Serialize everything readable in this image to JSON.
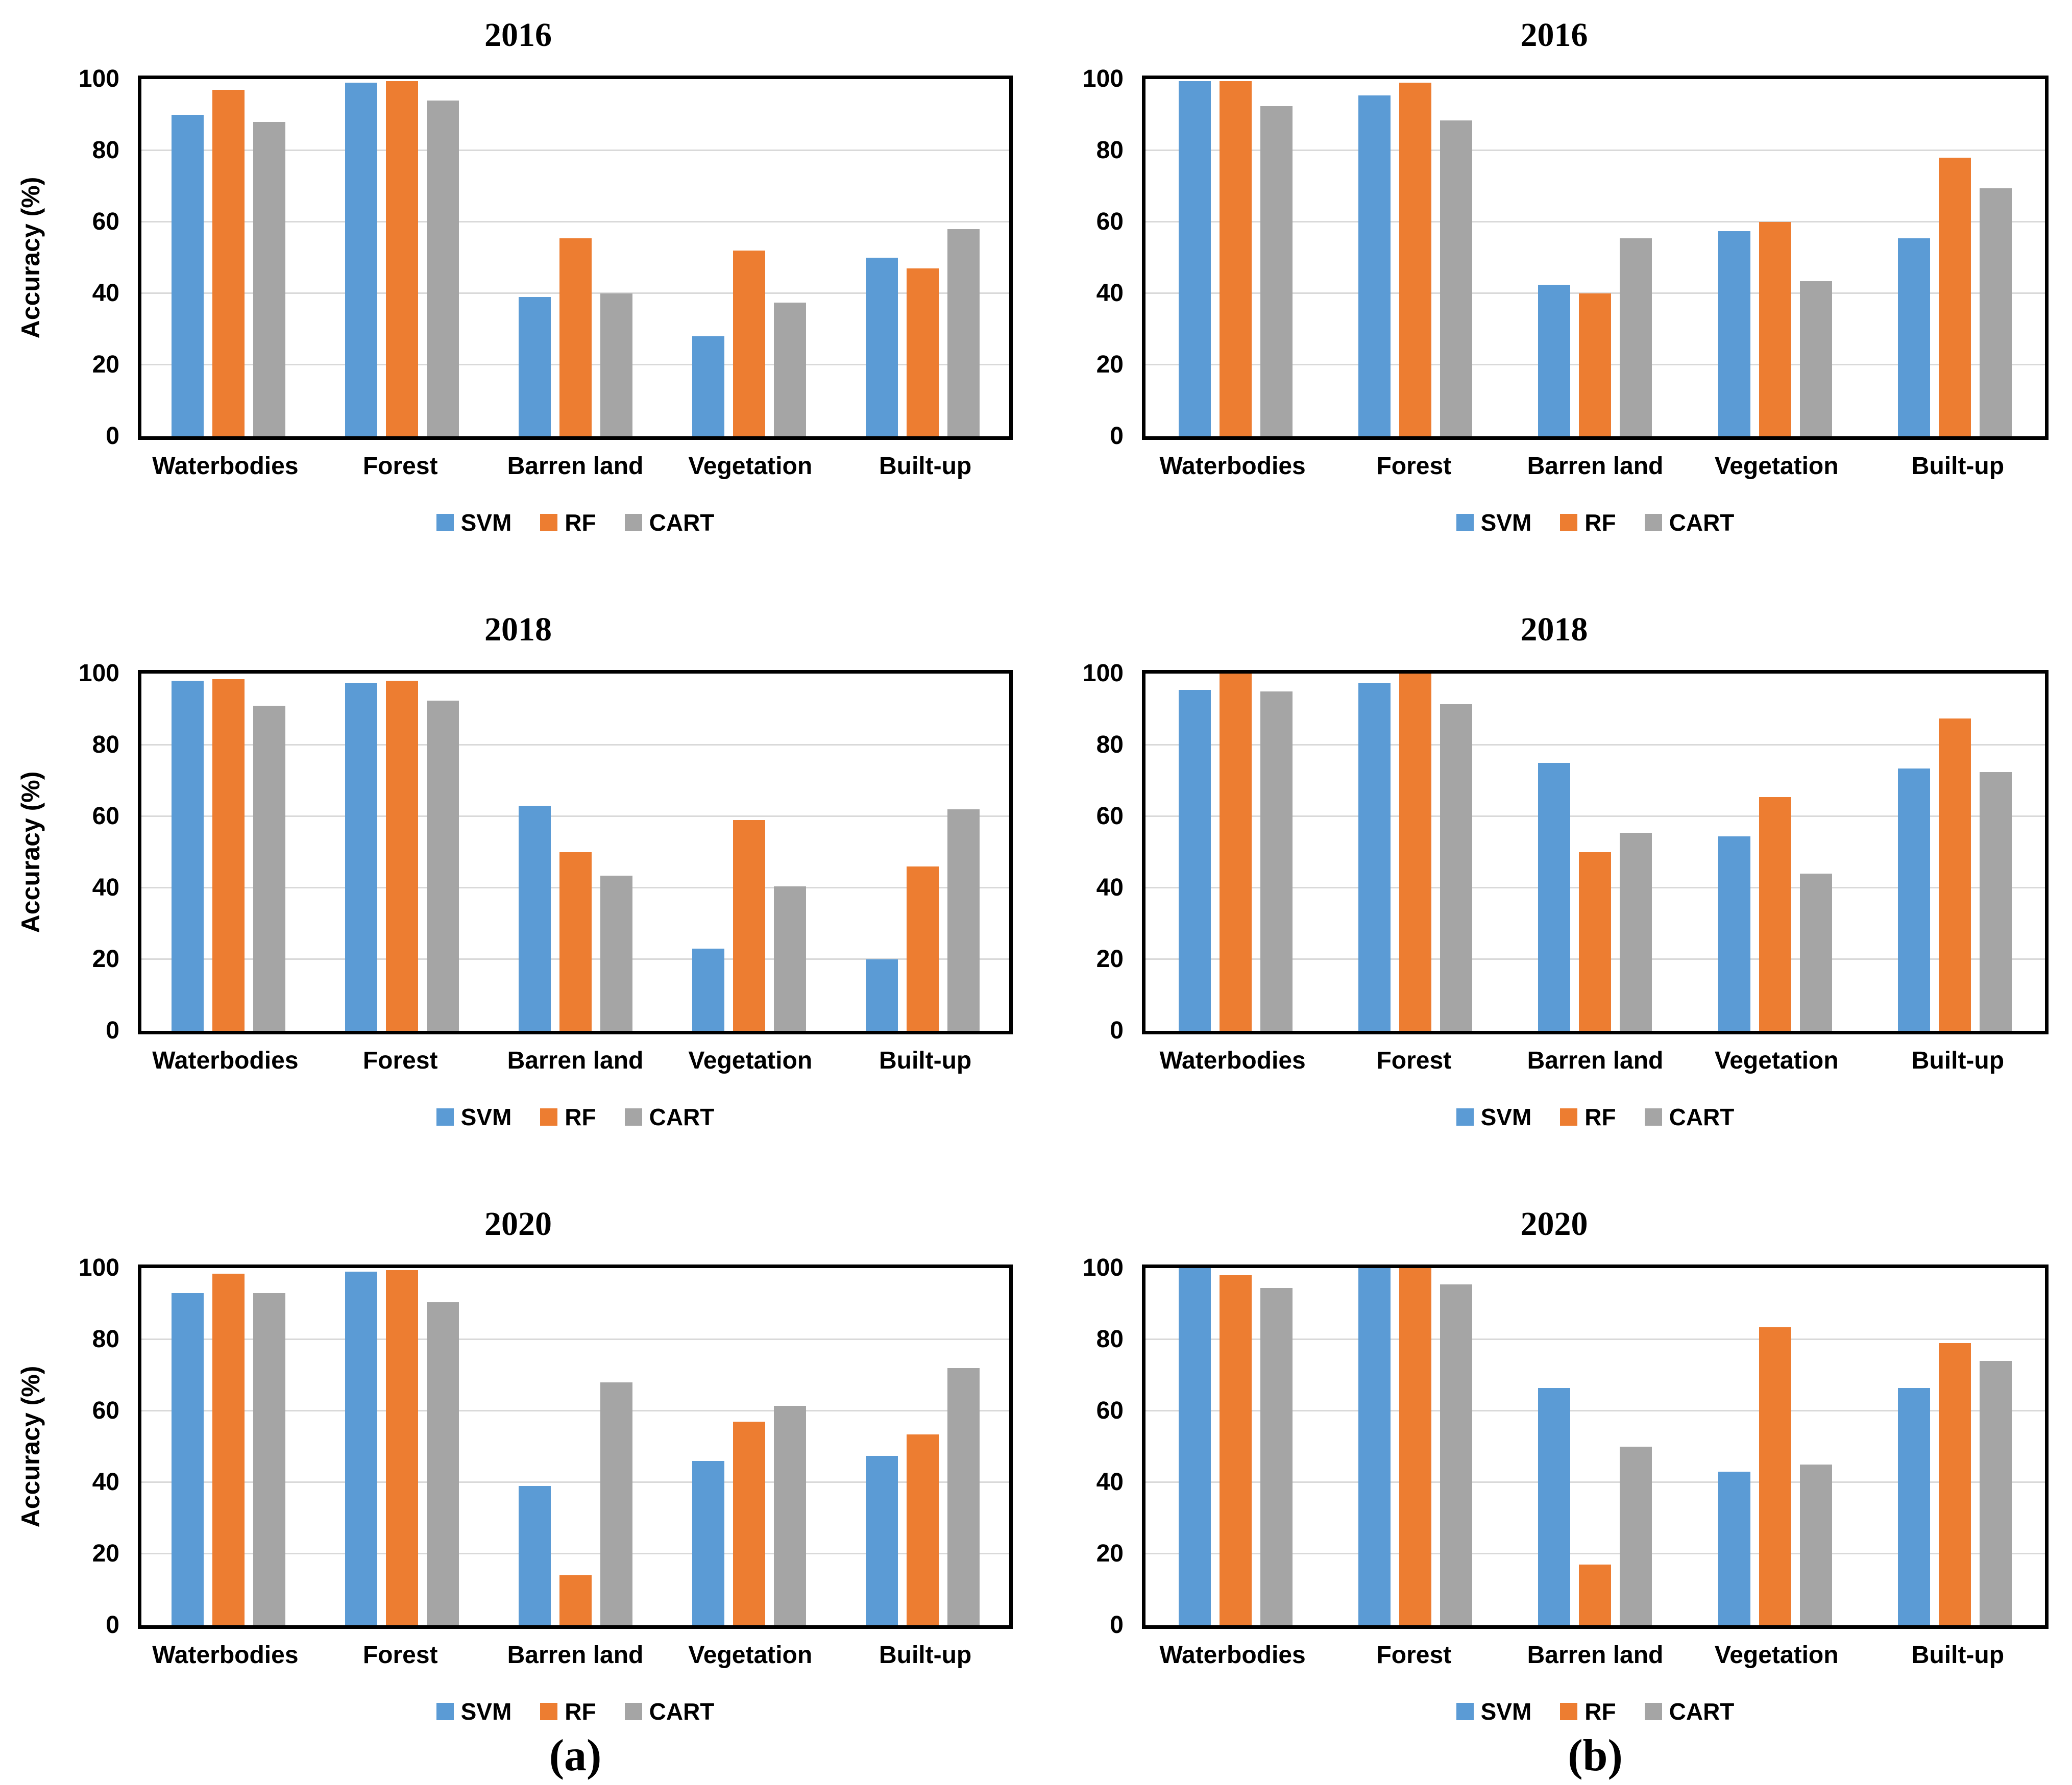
{
  "figure": {
    "legend_labels": [
      "SVM",
      "RF",
      "CART"
    ],
    "series_colors": {
      "SVM": "#5B9BD5",
      "RF": "#ED7D31",
      "CART": "#A5A5A5"
    },
    "gridline_color": "#D9D9D9",
    "plot_border_color": "#000000",
    "captions": {
      "left": "(a)",
      "right": "(b)"
    }
  },
  "chart_data": [
    {
      "type": "bar",
      "panel": "a",
      "title": "2016",
      "ylabel": "Accuracy (%)",
      "ylim": [
        0,
        100
      ],
      "yticks": [
        0,
        20,
        40,
        60,
        80,
        100
      ],
      "gridlines": [
        20,
        40,
        60,
        80
      ],
      "grid": true,
      "legend_position": "bottom",
      "caption": null,
      "categories": [
        "Waterbodies",
        "Forest",
        "Barren land",
        "Vegetation",
        "Built-up"
      ],
      "series": [
        {
          "name": "SVM",
          "color": "#5B9BD5",
          "values": [
            90,
            99,
            39,
            28,
            50
          ]
        },
        {
          "name": "RF",
          "color": "#ED7D31",
          "values": [
            97,
            99.5,
            55.5,
            52,
            47
          ]
        },
        {
          "name": "CART",
          "color": "#A5A5A5",
          "values": [
            88,
            94,
            40,
            37.5,
            58
          ]
        }
      ]
    },
    {
      "type": "bar",
      "panel": "b",
      "title": "2016",
      "ylabel": null,
      "ylim": [
        0,
        100
      ],
      "yticks": [
        0,
        20,
        40,
        60,
        80,
        100
      ],
      "gridlines": [
        20,
        40,
        60,
        80
      ],
      "grid": true,
      "legend_position": "bottom",
      "caption": null,
      "categories": [
        "Waterbodies",
        "Forest",
        "Barren land",
        "Vegetation",
        "Built-up"
      ],
      "series": [
        {
          "name": "SVM",
          "color": "#5B9BD5",
          "values": [
            99.5,
            95.5,
            42.5,
            57.5,
            55.5
          ]
        },
        {
          "name": "RF",
          "color": "#ED7D31",
          "values": [
            99.5,
            99,
            40,
            60,
            78
          ]
        },
        {
          "name": "CART",
          "color": "#A5A5A5",
          "values": [
            92.5,
            88.5,
            55.5,
            43.5,
            69.5
          ]
        }
      ]
    },
    {
      "type": "bar",
      "panel": "a",
      "title": "2018",
      "ylabel": "Accuracy (%)",
      "ylim": [
        0,
        100
      ],
      "yticks": [
        0,
        20,
        40,
        60,
        80,
        100
      ],
      "gridlines": [
        20,
        40,
        60,
        80
      ],
      "grid": true,
      "legend_position": "bottom",
      "caption": null,
      "categories": [
        "Waterbodies",
        "Forest",
        "Barren land",
        "Vegetation",
        "Built-up"
      ],
      "series": [
        {
          "name": "SVM",
          "color": "#5B9BD5",
          "values": [
            98,
            97.5,
            63,
            23,
            20
          ]
        },
        {
          "name": "RF",
          "color": "#ED7D31",
          "values": [
            98.5,
            98,
            50,
            59,
            46
          ]
        },
        {
          "name": "CART",
          "color": "#A5A5A5",
          "values": [
            91,
            92.5,
            43.5,
            40.5,
            62
          ]
        }
      ]
    },
    {
      "type": "bar",
      "panel": "b",
      "title": "2018",
      "ylabel": null,
      "ylim": [
        0,
        100
      ],
      "yticks": [
        0,
        20,
        40,
        60,
        80,
        100
      ],
      "gridlines": [
        20,
        40,
        60,
        80
      ],
      "grid": true,
      "legend_position": "bottom",
      "caption": null,
      "categories": [
        "Waterbodies",
        "Forest",
        "Barren land",
        "Vegetation",
        "Built-up"
      ],
      "series": [
        {
          "name": "SVM",
          "color": "#5B9BD5",
          "values": [
            95.5,
            97.5,
            75,
            54.5,
            73.5
          ]
        },
        {
          "name": "RF",
          "color": "#ED7D31",
          "values": [
            100,
            100,
            50,
            65.5,
            87.5
          ]
        },
        {
          "name": "CART",
          "color": "#A5A5A5",
          "values": [
            95,
            91.5,
            55.5,
            44,
            72.5
          ]
        }
      ]
    },
    {
      "type": "bar",
      "panel": "a",
      "title": "2020",
      "ylabel": "Accuracy (%)",
      "ylim": [
        0,
        100
      ],
      "yticks": [
        0,
        20,
        40,
        60,
        80,
        100
      ],
      "gridlines": [
        20,
        40,
        60,
        80
      ],
      "grid": true,
      "legend_position": "bottom",
      "caption": "(a)",
      "categories": [
        "Waterbodies",
        "Forest",
        "Barren land",
        "Vegetation",
        "Built-up"
      ],
      "series": [
        {
          "name": "SVM",
          "color": "#5B9BD5",
          "values": [
            93,
            99,
            39,
            46,
            47.5
          ]
        },
        {
          "name": "RF",
          "color": "#ED7D31",
          "values": [
            98.5,
            99.5,
            14,
            57,
            53.5
          ]
        },
        {
          "name": "CART",
          "color": "#A5A5A5",
          "values": [
            93,
            90.5,
            68,
            61.5,
            72
          ]
        }
      ]
    },
    {
      "type": "bar",
      "panel": "b",
      "title": "2020",
      "ylabel": null,
      "ylim": [
        0,
        100
      ],
      "yticks": [
        0,
        20,
        40,
        60,
        80,
        100
      ],
      "gridlines": [
        20,
        40,
        60,
        80
      ],
      "grid": true,
      "legend_position": "bottom",
      "caption": "(b)",
      "categories": [
        "Waterbodies",
        "Forest",
        "Barren land",
        "Vegetation",
        "Built-up"
      ],
      "series": [
        {
          "name": "SVM",
          "color": "#5B9BD5",
          "values": [
            100,
            100,
            66.5,
            43,
            66.5
          ]
        },
        {
          "name": "RF",
          "color": "#ED7D31",
          "values": [
            98,
            100,
            17,
            83.5,
            79
          ]
        },
        {
          "name": "CART",
          "color": "#A5A5A5",
          "values": [
            94.5,
            95.5,
            50,
            45,
            74
          ]
        }
      ]
    }
  ]
}
